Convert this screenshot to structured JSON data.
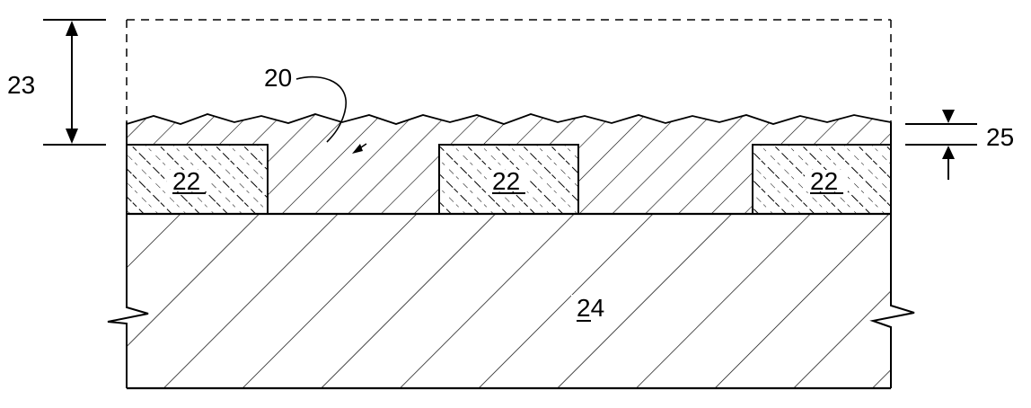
{
  "figure": {
    "labels": {
      "layer_20": "20",
      "block_22_left": "22",
      "block_22_middle": "22",
      "block_22_right": "22",
      "thickness_23": "23",
      "thickness_25": "25",
      "substrate_24": "24"
    },
    "colors": {
      "line": "#000000",
      "background": "#ffffff"
    }
  }
}
